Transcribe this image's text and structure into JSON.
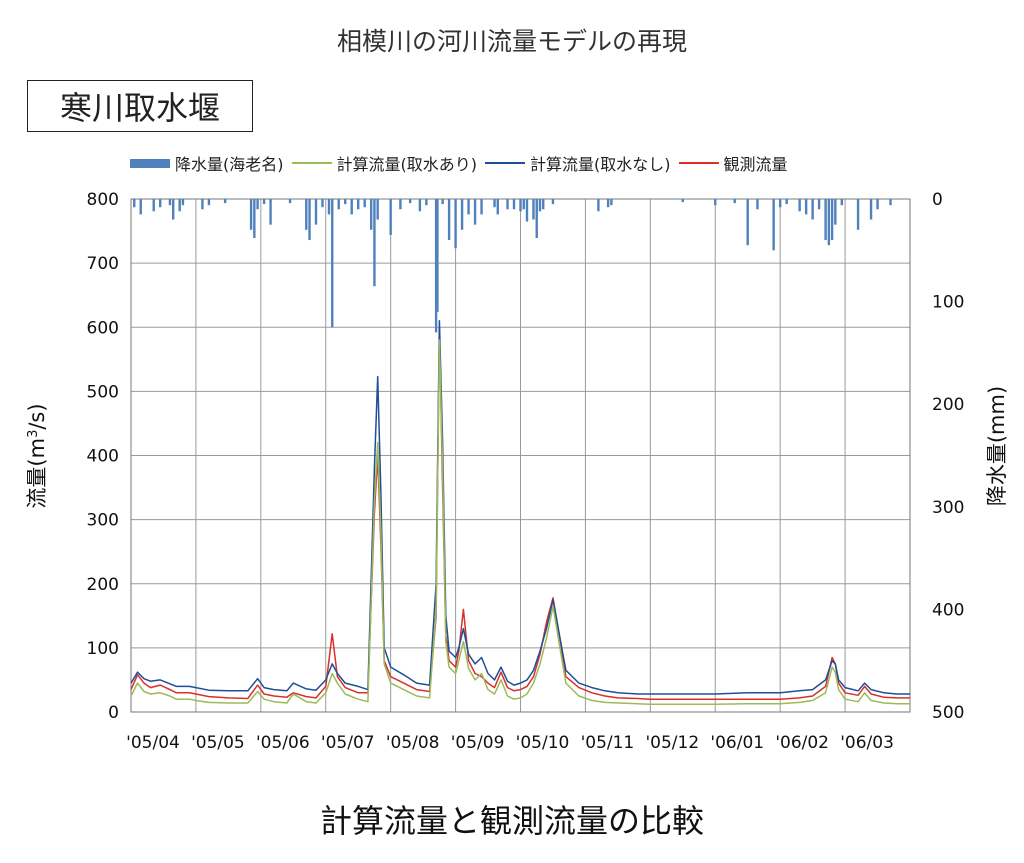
{
  "header": {
    "title": "相模川の河川流量モデルの再現"
  },
  "station": {
    "name": "寒川取水堰"
  },
  "footer": {
    "title": "計算流量と観測流量の比較"
  },
  "legend": {
    "items": [
      {
        "label": "降水量(海老名)",
        "color": "#4f81bd",
        "kind": "bar"
      },
      {
        "label": "計算流量(取水あり)",
        "color": "#9bbb59",
        "kind": "line"
      },
      {
        "label": "計算流量(取水なし)",
        "color": "#1f4e9a",
        "kind": "line"
      },
      {
        "label": "観測流量",
        "color": "#d9302c",
        "kind": "line"
      }
    ]
  },
  "chart_data": {
    "type": "line",
    "ylabel": "流量(m³/s)",
    "ylabel_main": "流量(m",
    "ylabel_sup": "3",
    "ylabel_tail": "/s)",
    "y2label": "降水量(mm)",
    "ylim": [
      0,
      800
    ],
    "y2lim": [
      0,
      500
    ],
    "y2_inverted": true,
    "yticks": [
      "0",
      "100",
      "200",
      "300",
      "400",
      "500",
      "600",
      "700",
      "800"
    ],
    "y2ticks": [
      "0",
      "100",
      "200",
      "300",
      "400",
      "500"
    ],
    "categories": [
      "'05/04",
      "'05/05",
      "'05/06",
      "'05/07",
      "'05/08",
      "'05/09",
      "'05/10",
      "'05/11",
      "'05/12",
      "'06/01",
      "'06/02",
      "'06/03"
    ],
    "x_range_months": [
      0,
      12
    ],
    "grid": true,
    "series": [
      {
        "name": "観測流量",
        "color": "#d9302c",
        "x": [
          0,
          0.1,
          0.2,
          0.3,
          0.45,
          0.6,
          0.7,
          0.9,
          1.0,
          1.2,
          1.5,
          1.8,
          1.95,
          2.05,
          2.2,
          2.4,
          2.5,
          2.7,
          2.85,
          3.0,
          3.1,
          3.18,
          3.3,
          3.5,
          3.65,
          3.75,
          3.8,
          3.85,
          3.9,
          4.0,
          4.2,
          4.4,
          4.6,
          4.7,
          4.75,
          4.8,
          4.85,
          4.9,
          5.0,
          5.05,
          5.12,
          5.2,
          5.3,
          5.4,
          5.5,
          5.6,
          5.7,
          5.8,
          5.9,
          6.0,
          6.1,
          6.2,
          6.3,
          6.4,
          6.5,
          6.6,
          6.7,
          6.9,
          7.1,
          7.3,
          7.5,
          7.8,
          8.0,
          8.5,
          9.0,
          9.5,
          10.0,
          10.3,
          10.5,
          10.7,
          10.8,
          10.85,
          10.9,
          11.0,
          11.2,
          11.3,
          11.4,
          11.6,
          11.8,
          12.0
        ],
        "y": [
          35,
          58,
          45,
          38,
          42,
          35,
          30,
          30,
          28,
          24,
          22,
          21,
          42,
          28,
          25,
          23,
          30,
          24,
          22,
          40,
          122,
          55,
          38,
          30,
          30,
          310,
          400,
          260,
          80,
          55,
          45,
          35,
          32,
          150,
          600,
          350,
          120,
          80,
          70,
          95,
          160,
          80,
          60,
          55,
          45,
          38,
          62,
          38,
          33,
          35,
          40,
          55,
          90,
          140,
          178,
          120,
          55,
          38,
          30,
          25,
          22,
          21,
          20,
          20,
          20,
          20,
          20,
          22,
          25,
          40,
          85,
          75,
          45,
          30,
          26,
          40,
          28,
          23,
          22,
          22
        ]
      },
      {
        "name": "計算流量(取水なし)",
        "color": "#1f4e9a",
        "x": [
          0,
          0.1,
          0.2,
          0.3,
          0.45,
          0.6,
          0.7,
          0.9,
          1.0,
          1.2,
          1.5,
          1.8,
          1.95,
          2.05,
          2.2,
          2.4,
          2.5,
          2.7,
          2.85,
          3.0,
          3.1,
          3.18,
          3.3,
          3.5,
          3.65,
          3.75,
          3.8,
          3.85,
          3.9,
          4.0,
          4.2,
          4.4,
          4.6,
          4.7,
          4.75,
          4.8,
          4.85,
          4.9,
          5.0,
          5.05,
          5.12,
          5.2,
          5.3,
          5.4,
          5.5,
          5.6,
          5.7,
          5.8,
          5.9,
          6.0,
          6.1,
          6.2,
          6.3,
          6.4,
          6.5,
          6.6,
          6.7,
          6.9,
          7.1,
          7.3,
          7.5,
          7.8,
          8.0,
          8.5,
          9.0,
          9.5,
          10.0,
          10.3,
          10.5,
          10.7,
          10.8,
          10.85,
          10.9,
          11.0,
          11.2,
          11.3,
          11.4,
          11.6,
          11.8,
          12.0
        ],
        "y": [
          45,
          62,
          52,
          48,
          50,
          44,
          40,
          40,
          38,
          34,
          33,
          33,
          52,
          38,
          35,
          33,
          45,
          36,
          34,
          50,
          75,
          60,
          45,
          40,
          35,
          380,
          523,
          340,
          100,
          70,
          58,
          45,
          42,
          200,
          610,
          420,
          150,
          95,
          85,
          100,
          130,
          90,
          75,
          85,
          60,
          50,
          70,
          48,
          42,
          45,
          50,
          65,
          95,
          130,
          175,
          120,
          65,
          45,
          38,
          33,
          30,
          28,
          28,
          28,
          28,
          30,
          30,
          33,
          35,
          50,
          80,
          75,
          50,
          38,
          33,
          45,
          35,
          30,
          28,
          28
        ]
      },
      {
        "name": "計算流量(取水あり)",
        "color": "#9bbb59",
        "x": [
          0,
          0.1,
          0.2,
          0.3,
          0.45,
          0.6,
          0.7,
          0.9,
          1.0,
          1.2,
          1.5,
          1.8,
          1.95,
          2.05,
          2.2,
          2.4,
          2.5,
          2.7,
          2.85,
          3.0,
          3.1,
          3.18,
          3.3,
          3.5,
          3.65,
          3.75,
          3.8,
          3.85,
          3.9,
          4.0,
          4.2,
          4.4,
          4.6,
          4.7,
          4.75,
          4.8,
          4.85,
          4.9,
          5.0,
          5.05,
          5.12,
          5.2,
          5.3,
          5.4,
          5.5,
          5.6,
          5.7,
          5.8,
          5.9,
          6.0,
          6.1,
          6.2,
          6.3,
          6.4,
          6.5,
          6.6,
          6.7,
          6.9,
          7.1,
          7.3,
          7.5,
          7.8,
          8.0,
          8.5,
          9.0,
          9.5,
          10.0,
          10.3,
          10.5,
          10.7,
          10.8,
          10.85,
          10.9,
          11.0,
          11.2,
          11.3,
          11.4,
          11.6,
          11.8,
          12.0
        ],
        "y": [
          25,
          45,
          32,
          28,
          30,
          25,
          20,
          20,
          18,
          15,
          14,
          14,
          32,
          20,
          16,
          14,
          28,
          16,
          14,
          30,
          60,
          45,
          28,
          20,
          16,
          330,
          420,
          280,
          75,
          45,
          35,
          25,
          22,
          160,
          580,
          380,
          110,
          70,
          60,
          80,
          110,
          68,
          50,
          60,
          35,
          28,
          50,
          25,
          20,
          22,
          28,
          45,
          75,
          115,
          165,
          105,
          45,
          25,
          18,
          15,
          14,
          13,
          12,
          12,
          12,
          13,
          13,
          15,
          18,
          30,
          70,
          62,
          35,
          20,
          16,
          30,
          18,
          14,
          13,
          13
        ]
      }
    ],
    "precipitation": {
      "name": "降水量(海老名)",
      "color": "#4f81bd",
      "x": [
        0.05,
        0.15,
        0.35,
        0.45,
        0.6,
        0.65,
        0.75,
        0.8,
        1.1,
        1.2,
        1.45,
        1.85,
        1.9,
        1.95,
        2.05,
        2.15,
        2.45,
        2.7,
        2.75,
        2.85,
        2.95,
        3.05,
        3.1,
        3.2,
        3.3,
        3.4,
        3.5,
        3.6,
        3.7,
        3.75,
        3.8,
        4.0,
        4.15,
        4.3,
        4.45,
        4.55,
        4.7,
        4.72,
        4.8,
        4.9,
        5.0,
        5.1,
        5.2,
        5.3,
        5.4,
        5.6,
        5.65,
        5.8,
        5.9,
        6.0,
        6.05,
        6.1,
        6.2,
        6.25,
        6.3,
        6.35,
        6.5,
        7.2,
        7.35,
        7.4,
        8.5,
        9.0,
        9.3,
        9.5,
        9.65,
        9.9,
        10.0,
        10.1,
        10.3,
        10.4,
        10.5,
        10.6,
        10.7,
        10.75,
        10.8,
        10.85,
        10.95,
        11.2,
        11.4,
        11.5,
        11.7
      ],
      "values": [
        8,
        15,
        12,
        8,
        6,
        20,
        12,
        6,
        10,
        6,
        4,
        30,
        38,
        10,
        5,
        25,
        4,
        30,
        40,
        25,
        8,
        15,
        125,
        10,
        5,
        15,
        10,
        8,
        30,
        85,
        20,
        35,
        10,
        4,
        12,
        6,
        130,
        110,
        5,
        40,
        48,
        30,
        15,
        25,
        15,
        8,
        15,
        10,
        10,
        12,
        10,
        22,
        20,
        38,
        12,
        10,
        5,
        12,
        8,
        6,
        3,
        6,
        4,
        45,
        10,
        50,
        8,
        5,
        12,
        15,
        20,
        10,
        40,
        45,
        40,
        25,
        6,
        30,
        20,
        10,
        6
      ]
    }
  }
}
